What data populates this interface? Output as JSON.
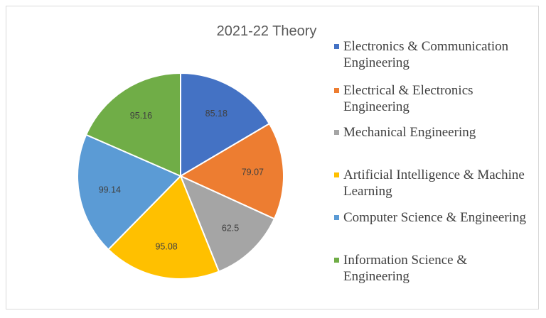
{
  "chart_data": {
    "type": "pie",
    "title": "2021-22 Theory",
    "legend_position": "right",
    "categories": [
      "Electronics & Communication Engineering",
      "Electrical & Electronics Engineering",
      "Mechanical Engineering",
      "Artificial Intelligence & Machine Learning",
      "Computer Science & Engineering",
      "Information Science & Engineering"
    ],
    "values": [
      85.18,
      79.07,
      62.5,
      95.08,
      99.14,
      95.16
    ],
    "value_labels": [
      "85.18",
      "79.07",
      "62.5",
      "95.08",
      "99.14",
      "95.16"
    ],
    "colors": [
      "#4472c4",
      "#ed7d31",
      "#a5a5a5",
      "#ffc000",
      "#5b9bd5",
      "#70ad47"
    ]
  }
}
